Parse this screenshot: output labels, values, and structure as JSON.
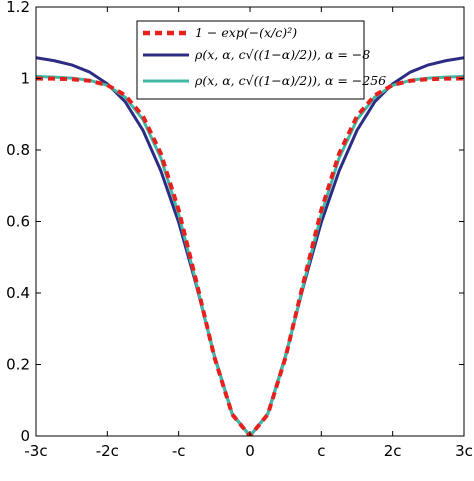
{
  "chart_data": {
    "type": "line",
    "title": "",
    "xlabel": "",
    "ylabel": "",
    "xlim": [
      -3,
      3
    ],
    "ylim": [
      0,
      1.2
    ],
    "x_ticks": [
      {
        "value": -3,
        "label": "-3c"
      },
      {
        "value": -2,
        "label": "-2c"
      },
      {
        "value": -1,
        "label": "-c"
      },
      {
        "value": 0,
        "label": "0"
      },
      {
        "value": 1,
        "label": "c"
      },
      {
        "value": 2,
        "label": "2c"
      },
      {
        "value": 3,
        "label": "3c"
      }
    ],
    "y_ticks": [
      {
        "value": 0,
        "label": "0"
      },
      {
        "value": 0.2,
        "label": "0.2"
      },
      {
        "value": 0.4,
        "label": "0.4"
      },
      {
        "value": 0.6,
        "label": "0.6"
      },
      {
        "value": 0.8,
        "label": "0.8"
      },
      {
        "value": 1,
        "label": "1"
      },
      {
        "value": 1.2,
        "label": "1.2"
      }
    ],
    "grid": false,
    "legend_position": "top-center",
    "x": [
      -3,
      -2.75,
      -2.5,
      -2.25,
      -2,
      -1.75,
      -1.5,
      -1.25,
      -1,
      -0.75,
      -0.5,
      -0.25,
      0,
      0.25,
      0.5,
      0.75,
      1,
      1.25,
      1.5,
      1.75,
      2,
      2.25,
      2.5,
      2.75,
      3
    ],
    "series": [
      {
        "name": "1 − exp(−(x/c)²)",
        "color": "#e8201c",
        "style": "dashed",
        "values": [
          0.9999,
          0.9995,
          0.9981,
          0.9937,
          0.9817,
          0.9532,
          0.8946,
          0.7904,
          0.6321,
          0.4302,
          0.2212,
          0.0606,
          0.0,
          0.0606,
          0.2212,
          0.4302,
          0.6321,
          0.7904,
          0.8946,
          0.9532,
          0.9817,
          0.9937,
          0.9981,
          0.9995,
          0.9999
        ]
      },
      {
        "name": "α = −8",
        "color": "#2c2c84",
        "style": "solid",
        "values": [
          1.058,
          1.05,
          1.038,
          1.018,
          0.985,
          0.935,
          0.855,
          0.742,
          0.598,
          0.42,
          0.225,
          0.062,
          0.0,
          0.062,
          0.225,
          0.42,
          0.598,
          0.742,
          0.855,
          0.935,
          0.985,
          1.018,
          1.038,
          1.05,
          1.058
        ]
      },
      {
        "name": "α = −256",
        "color": "#3fb8a6",
        "style": "solid",
        "values": [
          1.006,
          1.004,
          1.001,
          0.995,
          0.981,
          0.948,
          0.885,
          0.778,
          0.62,
          0.425,
          0.222,
          0.061,
          0.0,
          0.061,
          0.222,
          0.425,
          0.62,
          0.778,
          0.885,
          0.948,
          0.981,
          0.995,
          1.001,
          1.004,
          1.006
        ]
      }
    ],
    "legend": [
      {
        "main": "1 − exp(−(x/c)²)",
        "suffix": ""
      },
      {
        "main": "ρ(x, α, c√((1−α)/2))",
        "suffix": ", α = −8"
      },
      {
        "main": "ρ(x, α, c√((1−α)/2))",
        "suffix": ", α = −256"
      }
    ]
  }
}
